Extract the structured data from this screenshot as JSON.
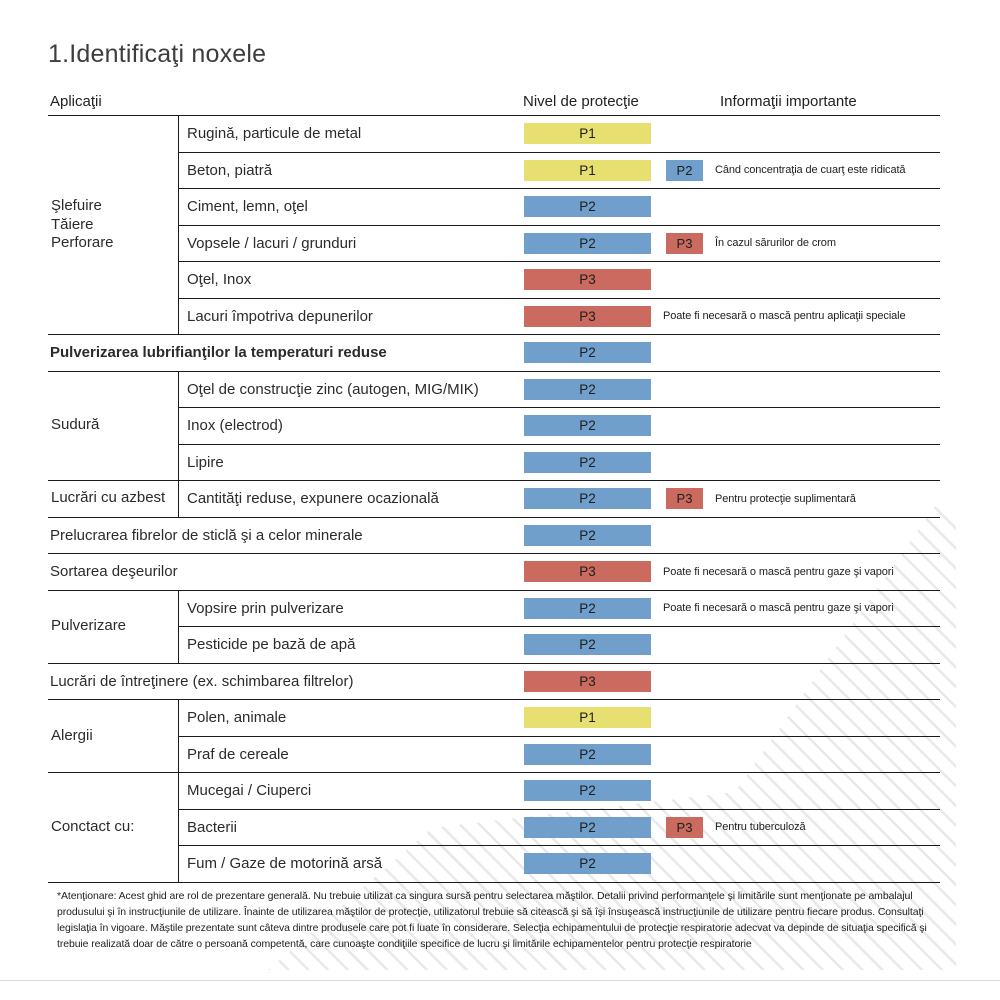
{
  "page": {
    "title": "1.Identificaţi noxele",
    "protection_colors": {
      "P1": "#e7df70",
      "P2": "#6f9fca",
      "P3": "#cb6a5e"
    },
    "bottom_note": "*Atenţionare: Acest ghid are rol de prezentare generală. Nu trebuie utilizat ca singura sursă pentru selectarea măştilor. Detalii privind performanţele şi limitările sunt menţionate pe ambalajul produsului şi în instrucţiunile de utilizare. Înainte de utilizarea măştilor de protecţie, utilizatorul trebuie să citească şi să îşi însuşească instrucţiunile de utilizare pentru fiecare produs. Consultaţi legislaţia în vigoare. Măştile prezentate sunt câteva dintre produsele care pot fi luate în considerare. Selecţia echipamentului de protecţie respiratorie adecvat va depinde de situaţia specifică şi trebuie realizată doar de către o persoană competentă, care cunoaşte condiţiile specifice de lucru şi limitările echipamentelor pentru protecţie respiratorie"
  },
  "table": {
    "headers": {
      "applications": "Aplicaţii",
      "protection_level": "Nivel de protecţie",
      "important_info": "Informaţii importante"
    },
    "groups": [
      {
        "label": "Şlefuire\nTăiere\nPerforare",
        "rows": [
          {
            "item": "Rugină, particule de metal",
            "level": "P1"
          },
          {
            "item": "Beton, piatră",
            "level": "P1",
            "extra_level": "P2",
            "info": "Când concentraţia de cuarţ este ridicată"
          },
          {
            "item": "Ciment, lemn, oţel",
            "level": "P2"
          },
          {
            "item": "Vopsele / lacuri / grunduri",
            "level": "P2",
            "extra_level": "P3",
            "info": "În cazul sărurilor de crom"
          },
          {
            "item": "Oţel, Inox",
            "level": "P3"
          },
          {
            "item": "Lacuri împotriva depunerilor",
            "level": "P3",
            "info": "Poate fi necesară o mască pentru aplicaţii speciale"
          }
        ]
      },
      {
        "label": "",
        "bold": true,
        "rows": [
          {
            "item": "Pulverizarea lubrifianţilor la temperaturi reduse",
            "level": "P2"
          }
        ]
      },
      {
        "label": "Sudură",
        "rows": [
          {
            "item": "Oţel de construcţie zinc (autogen, MIG/MIK)",
            "level": "P2"
          },
          {
            "item": "Inox (electrod)",
            "level": "P2"
          },
          {
            "item": "Lipire",
            "level": "P2"
          }
        ]
      },
      {
        "label": "Lucrări cu azbest",
        "rows": [
          {
            "item": "Cantităţi reduse, expunere ocazională",
            "level": "P2",
            "extra_level": "P3",
            "info": "Pentru protecţie suplimentară"
          }
        ]
      },
      {
        "label": "",
        "rows": [
          {
            "item": "Prelucrarea fibrelor de sticlă şi a celor minerale",
            "level": "P2"
          }
        ]
      },
      {
        "label": "",
        "rows": [
          {
            "item": "Sortarea deşeurilor",
            "level": "P3",
            "info": "Poate fi necesară o mască pentru gaze şi vapori"
          }
        ]
      },
      {
        "label": "Pulverizare",
        "rows": [
          {
            "item": "Vopsire prin pulverizare",
            "level": "P2",
            "info": "Poate fi necesară o mască pentru gaze şi vapori"
          },
          {
            "item": "Pesticide pe bază de apă",
            "level": "P2"
          }
        ]
      },
      {
        "label": "",
        "rows": [
          {
            "item": "Lucrări de întreţinere (ex. schimbarea filtrelor)",
            "level": "P3"
          }
        ]
      },
      {
        "label": "Alergii",
        "rows": [
          {
            "item": "Polen, animale",
            "level": "P1"
          },
          {
            "item": "Praf de cereale",
            "level": "P2"
          }
        ]
      },
      {
        "label": "Conctact cu:",
        "rows": [
          {
            "item": "Mucegai / Ciuperci",
            "level": "P2"
          },
          {
            "item": "Bacterii",
            "level": "P2",
            "extra_level": "P3",
            "info": "Pentru tuberculoză"
          },
          {
            "item": "Fum / Gaze de motorină arsă",
            "level": "P2"
          }
        ]
      }
    ]
  }
}
